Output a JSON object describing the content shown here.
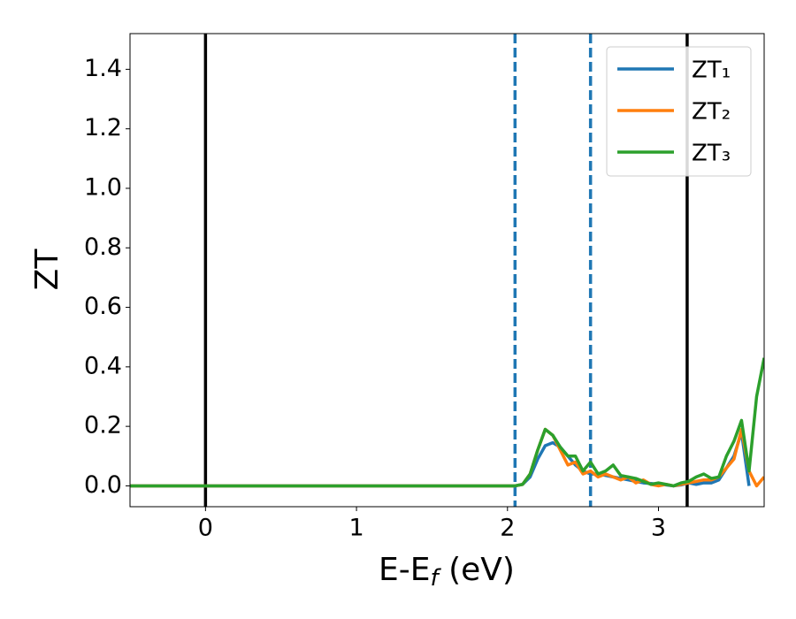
{
  "chart_data": {
    "type": "line",
    "xlabel": [
      "E-E",
      "f",
      " (eV)"
    ],
    "ylabel": "ZT",
    "x": [
      -0.5,
      2.0,
      2.05,
      2.1,
      2.15,
      2.2,
      2.25,
      2.3,
      2.35,
      2.4,
      2.45,
      2.5,
      2.55,
      2.6,
      2.65,
      2.7,
      2.75,
      2.8,
      2.85,
      2.9,
      2.95,
      3.0,
      3.05,
      3.1,
      3.15,
      3.2,
      3.25,
      3.3,
      3.35,
      3.4,
      3.45,
      3.5,
      3.55,
      3.6,
      3.65,
      3.7
    ],
    "series": [
      {
        "name": "ZT₁",
        "color": "#1f77b4",
        "values": [
          0,
          0,
          0,
          0.005,
          0.03,
          0.09,
          0.135,
          0.145,
          0.13,
          0.1,
          0.07,
          0.05,
          0.04,
          0.04,
          0.035,
          0.03,
          0.025,
          0.02,
          0.015,
          0.01,
          0.008,
          0.005,
          0.003,
          0,
          0.003,
          0.01,
          0.005,
          0.01,
          0.01,
          0.02,
          0.06,
          0.1,
          0.18,
          0.0,
          null,
          null
        ]
      },
      {
        "name": "ZT₂",
        "color": "#ff7f0e",
        "values": [
          0,
          0,
          0,
          0.005,
          0.04,
          0.12,
          0.19,
          0.17,
          0.12,
          0.07,
          0.08,
          0.04,
          0.05,
          0.03,
          0.04,
          0.03,
          0.02,
          0.03,
          0.01,
          0.02,
          0.005,
          0.0,
          0.005,
          0,
          0.005,
          0.01,
          0.015,
          0.02,
          0.02,
          0.03,
          0.06,
          0.09,
          0.19,
          0.05,
          0.0,
          0.03
        ]
      },
      {
        "name": "ZT₃",
        "color": "#2ca02c",
        "values": [
          0,
          0,
          0,
          0.005,
          0.04,
          0.12,
          0.19,
          0.17,
          0.13,
          0.1,
          0.1,
          0.05,
          0.08,
          0.04,
          0.05,
          0.07,
          0.035,
          0.03,
          0.025,
          0.015,
          0.005,
          0.01,
          0.005,
          0.0,
          0.01,
          0.015,
          0.03,
          0.04,
          0.025,
          0.03,
          0.1,
          0.15,
          0.22,
          0.05,
          0.3,
          0.43
        ]
      }
    ],
    "vlines": [
      {
        "x": 0,
        "color": "#000000",
        "style": "solid"
      },
      {
        "x": 3.19,
        "color": "#000000",
        "style": "solid"
      },
      {
        "x": 2.05,
        "color": "#1f77b4",
        "style": "dashed"
      },
      {
        "x": 2.55,
        "color": "#1f77b4",
        "style": "dashed"
      }
    ],
    "xlim": [
      -0.5,
      3.7
    ],
    "ylim": [
      -0.07,
      1.52
    ],
    "xticks": [
      0,
      1,
      2,
      3
    ],
    "yticks": [
      {
        "value": 0,
        "label": "0.0"
      },
      0.2,
      0.4,
      0.6,
      0.8,
      {
        "value": 1,
        "label": "1.0"
      },
      1.2,
      1.4
    ],
    "legend": "upper right",
    "grid": false
  }
}
